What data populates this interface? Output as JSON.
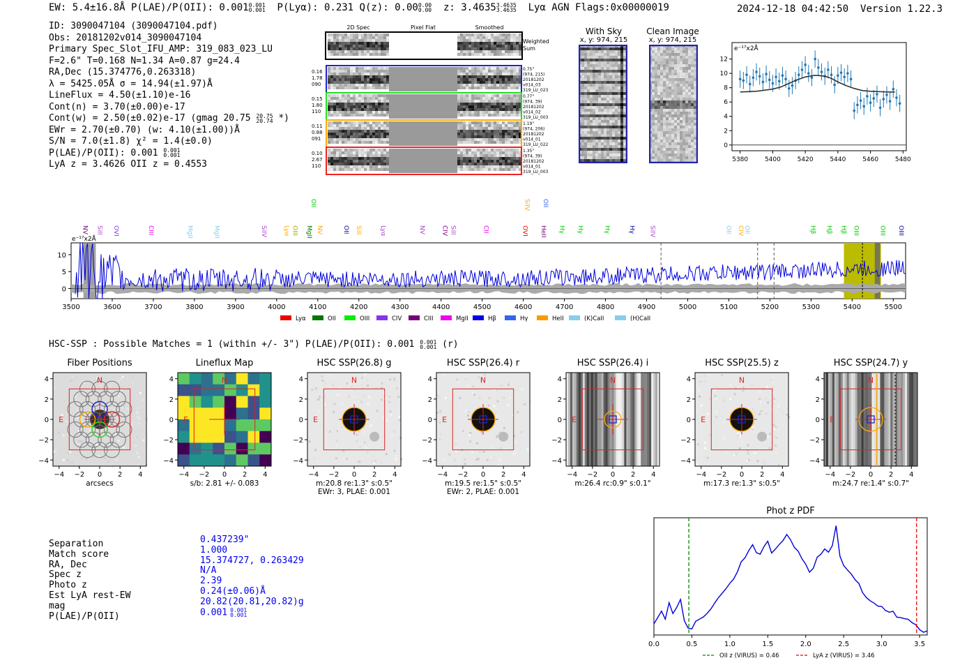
{
  "header": {
    "summary": "EW: 5.4±16.8Å  P(LAE)/P(OII): 0.001",
    "plae_sup": "0.001",
    "plae_sub": "0.001",
    "plya": "P(Lyα): 0.231  Q(z): 0.00",
    "qz_sup": "0.00",
    "qz_sub": "0.00",
    "z": "z: 3.4635",
    "z_sup": "3.4635",
    "z_sub": "3.4635",
    "tail": "Lyα  AGN  Flags:0x00000019",
    "datetime": "2024-12-18 04:42:50",
    "version": "Version 1.22.3"
  },
  "info": {
    "lines": [
      "ID: 3090047104 (3090047104.pdf)",
      "Obs: 20181202v014_3090047104",
      "Primary Spec_Slot_IFU_AMP: 319_083_023_LU",
      "F=2.6\"  T=0.168  N=1.34  A=0.87  g=24.4",
      "RA,Dec (15.374776,0.263318)",
      "λ = 5425.05Å  σ = 14.94(±1.97)Å",
      "LineFlux = 4.50(±1.10)e-16",
      "Cont(n) = 3.70(±0.00)e-17"
    ],
    "contw": "Cont(w) = 2.50(±0.02)e-17 (gmag 20.75",
    "contw_sup": "20.75",
    "contw_sub": "20.74",
    "contw_tail": "*)",
    "ewr": "EWr = 2.70(±0.70) (w: 4.10(±1.00))Å",
    "sn": "S/N = 7.0(±1.8)  χ² = 1.4(±0.0)",
    "plae": "P(LAE)/P(OII): 0.001",
    "plae_sup": "0.001",
    "plae_sub": "0.001",
    "lyaz": "LyA z = 3.4626  OII z = 0.4553"
  },
  "fibers": {
    "col_titles": [
      "2D Spec",
      "Pixel Flat",
      "Smoothed"
    ],
    "weighted_sum": "Weighted\nSum",
    "rows": [
      {
        "left": [
          "0.16",
          "1.78",
          "090"
        ],
        "right": [
          "0.75\"",
          "(974, 215)",
          "20181202",
          "v014_03",
          "319_LU_023"
        ],
        "color": "#2222cc"
      },
      {
        "left": [
          "0.15",
          "1.80",
          "110"
        ],
        "right": [
          "0.77\"",
          "(974, 39)",
          "20181202",
          "v014_02",
          "319_LU_003"
        ],
        "color": "#22dd22"
      },
      {
        "left": [
          "0.11",
          "0.88",
          "091"
        ],
        "right": [
          "1.19\"",
          "(974, 206)",
          "20181202",
          "v014_01",
          "319_LU_022"
        ],
        "color": "#ffaa00"
      },
      {
        "left": [
          "0.10",
          "2.67",
          "110"
        ],
        "right": [
          "1.35\"",
          "(974, 39)",
          "20181202",
          "v014_01",
          "319_LU_003"
        ],
        "color": "#ee2222"
      }
    ]
  },
  "ccd_panels": [
    {
      "title": "With Sky",
      "subtitle": "x, y: 974, 215"
    },
    {
      "title": "Clean Image",
      "subtitle": "x, y: 974, 215"
    }
  ],
  "hsc_header": "HSC-SSP : Possible Matches = 1 (within +/- 3\")  P(LAE)/P(OII): 0.001",
  "hsc_header_sup": "0.001",
  "hsc_header_sub": "0.001",
  "hsc_header_tail": "(r)",
  "cutouts": [
    {
      "title": "Fiber Positions",
      "caption": [
        "arcsecs"
      ]
    },
    {
      "title": "Lineflux Map",
      "caption": [
        "s/b: 2.81 +/- 0.083"
      ]
    },
    {
      "title": "HSC SSP(26.8) g",
      "caption": [
        "m:20.8  re:1.3\"  s:0.5\"",
        "EWr: 3, PLAE: 0.001"
      ]
    },
    {
      "title": "HSC SSP(26.4) r",
      "caption": [
        "m:19.5  re:1.5\"  s:0.5\"",
        "EWr: 2, PLAE: 0.001"
      ]
    },
    {
      "title": "HSC SSP(26.4) i",
      "caption": [
        "m:26.4  rc:0.9\"  s:0.1\""
      ]
    },
    {
      "title": "HSC SSP(25.5) z",
      "caption": [
        "m:17.3  re:1.3\"  s:0.5\""
      ]
    },
    {
      "title": "HSC SSP(24.7) y",
      "caption": [
        "m:24.7  re:1.4\"  s:0.7\""
      ]
    }
  ],
  "cutout_axis": {
    "ticks": [
      "-4",
      "-2",
      "0",
      "2",
      "4"
    ],
    "compass_n": "N",
    "compass_e": "E"
  },
  "match_stats": {
    "labels": [
      "Separation",
      "Match score",
      "RA, Dec",
      "Spec z",
      "Photo z",
      "Est LyA rest-EW",
      "mag",
      "P(LAE)/P(OII)"
    ],
    "values": [
      "0.437239\"",
      "1.000",
      "15.374727, 0.263429",
      "N/A",
      "2.39",
      "0.24(±0.06)Å",
      "20.82(20.81,20.82)g",
      "0.001"
    ],
    "plae_sup": "0.001",
    "plae_sub": "0.001"
  },
  "chart_data": [
    {
      "id": "zoom-line-fit",
      "type": "scatter",
      "title": "",
      "ylabel": "e⁻¹⁷x2Å",
      "xlim": [
        5375,
        5482
      ],
      "ylim": [
        -0.8,
        14.3
      ],
      "xticks": [
        5380,
        5400,
        5420,
        5440,
        5460,
        5480
      ],
      "yticks": [
        0,
        2,
        4,
        6,
        8,
        10,
        12
      ],
      "points_x": [
        5380,
        5382,
        5384,
        5386,
        5388,
        5390,
        5392,
        5394,
        5396,
        5398,
        5400,
        5402,
        5404,
        5406,
        5408,
        5410,
        5412,
        5414,
        5416,
        5418,
        5420,
        5422,
        5424,
        5426,
        5428,
        5430,
        5432,
        5434,
        5436,
        5438,
        5440,
        5442,
        5444,
        5446,
        5448,
        5450,
        5452,
        5454,
        5456,
        5458,
        5460,
        5462,
        5464,
        5466,
        5468,
        5470,
        5472,
        5474,
        5476,
        5478
      ],
      "points_y": [
        9.2,
        9.0,
        9.8,
        8.5,
        9.4,
        10.2,
        9.6,
        8.8,
        9.9,
        9.1,
        8.6,
        9.5,
        8.9,
        9.7,
        9.2,
        7.9,
        8.3,
        9.0,
        9.8,
        10.5,
        11.2,
        10.0,
        9.4,
        12.0,
        10.8,
        10.2,
        9.6,
        10.5,
        9.8,
        8.4,
        9.7,
        10.1,
        9.5,
        10.0,
        9.2,
        4.8,
        5.6,
        6.2,
        5.4,
        6.8,
        5.9,
        6.5,
        7.1,
        5.2,
        6.4,
        7.0,
        6.1,
        7.8,
        6.6,
        5.8
      ],
      "err": 1.2,
      "fit_x": [
        5380,
        5390,
        5400,
        5405,
        5410,
        5415,
        5420,
        5425,
        5428,
        5432,
        5436,
        5440,
        5445,
        5450,
        5455,
        5460,
        5470,
        5475
      ],
      "fit_y": [
        7.4,
        7.5,
        7.8,
        8.1,
        8.6,
        9.1,
        9.5,
        9.7,
        9.7,
        9.6,
        9.3,
        8.8,
        8.3,
        7.9,
        7.6,
        7.5,
        7.4,
        7.4
      ]
    },
    {
      "id": "full-spectrum",
      "type": "line",
      "title": "",
      "ylabel": "e⁻¹⁷x2Å",
      "xlim": [
        3500,
        5530
      ],
      "ylim": [
        -3,
        13.5
      ],
      "xticks": [
        3500,
        3600,
        3700,
        3800,
        3900,
        4000,
        4100,
        4200,
        4300,
        4400,
        4500,
        4600,
        4700,
        4800,
        4900,
        5000,
        5100,
        5200,
        5300,
        5400,
        5500
      ],
      "yticks": [
        0,
        5,
        10
      ],
      "highlight": [
        5380,
        5470
      ],
      "dashed_lines": [
        4935,
        5170,
        5210
      ],
      "legend": [
        {
          "name": "Lyα",
          "color": "#ee0000"
        },
        {
          "name": "OII",
          "color": "#007700"
        },
        {
          "name": "OIII",
          "color": "#00ee00"
        },
        {
          "name": "CIV",
          "color": "#8833ee"
        },
        {
          "name": "CIII",
          "color": "#770077"
        },
        {
          "name": "MgII",
          "color": "#ee00ee"
        },
        {
          "name": "Hβ",
          "color": "#0000ee"
        },
        {
          "name": "Hγ",
          "color": "#3366ee"
        },
        {
          "name": "HeII",
          "color": "#ff9900"
        },
        {
          "name": "(K)CaII",
          "color": "#88ccee"
        },
        {
          "name": "(H)CaII",
          "color": "#88ccee"
        }
      ],
      "line_labels": [
        {
          "x": 3530,
          "text": "NV",
          "color": "#770077",
          "row": 0
        },
        {
          "x": 3565,
          "text": "SiII",
          "color": "#aa44cc",
          "row": 0
        },
        {
          "x": 3605,
          "text": "OVI",
          "color": "#8833ee",
          "row": 0
        },
        {
          "x": 3690,
          "text": "CIII",
          "color": "#ee00ee",
          "row": 0
        },
        {
          "x": 3785,
          "text": "MgII",
          "color": "#88ccee",
          "row": 0
        },
        {
          "x": 3850,
          "text": "MgII",
          "color": "#88ccee",
          "row": 0
        },
        {
          "x": 3965,
          "text": "SiIV",
          "color": "#aa44cc",
          "row": 0
        },
        {
          "x": 4020,
          "text": "Lyα",
          "color": "#ffaa00",
          "row": 0
        },
        {
          "x": 4040,
          "text": "OIII",
          "color": "#aaaa00",
          "row": 0
        },
        {
          "x": 4075,
          "text": "MgII",
          "color": "#007700",
          "row": 0
        },
        {
          "x": 4085,
          "text": "OII",
          "color": "#00cc00",
          "row": 1
        },
        {
          "x": 4100,
          "text": "NV",
          "color": "#ffaa00",
          "row": 0
        },
        {
          "x": 4165,
          "text": "OII",
          "color": "#0000aa",
          "row": 0
        },
        {
          "x": 4195,
          "text": "SiII",
          "color": "#ffaa00",
          "row": 0
        },
        {
          "x": 4255,
          "text": "Lyα",
          "color": "#aa44cc",
          "row": 0
        },
        {
          "x": 4350,
          "text": "NV",
          "color": "#aa44cc",
          "row": 0
        },
        {
          "x": 4405,
          "text": "CIV",
          "color": "#770077",
          "row": 0
        },
        {
          "x": 4425,
          "text": "SiII",
          "color": "#aa44cc",
          "row": 0
        },
        {
          "x": 4505,
          "text": "CII",
          "color": "#ee00ee",
          "row": 0
        },
        {
          "x": 4600,
          "text": "OVI",
          "color": "#ee0000",
          "row": 0
        },
        {
          "x": 4605,
          "text": "SiIV",
          "color": "#ffaa00",
          "row": 1
        },
        {
          "x": 4645,
          "text": "HeII",
          "color": "#770077",
          "row": 0
        },
        {
          "x": 4650,
          "text": "OII",
          "color": "#3366ee",
          "row": 1
        },
        {
          "x": 4690,
          "text": "Hγ",
          "color": "#00cc00",
          "row": 0
        },
        {
          "x": 4735,
          "text": "Hγ",
          "color": "#00cc00",
          "row": 0
        },
        {
          "x": 4800,
          "text": "Hγ",
          "color": "#00cc00",
          "row": 0
        },
        {
          "x": 4860,
          "text": "Hγ",
          "color": "#0000aa",
          "row": 0
        },
        {
          "x": 4910,
          "text": "SiIV",
          "color": "#aa44cc",
          "row": 0
        },
        {
          "x": 5095,
          "text": "OII",
          "color": "#88ccee",
          "row": 0
        },
        {
          "x": 5125,
          "text": "CIV",
          "color": "#ffaa00",
          "row": 0
        },
        {
          "x": 5140,
          "text": "OII",
          "color": "#88ccee",
          "row": 0
        },
        {
          "x": 5300,
          "text": "Hβ",
          "color": "#00cc00",
          "row": 0
        },
        {
          "x": 5340,
          "text": "Hβ",
          "color": "#00cc00",
          "row": 0
        },
        {
          "x": 5375,
          "text": "Hβ",
          "color": "#00cc00",
          "row": 0
        },
        {
          "x": 5405,
          "text": "OIII",
          "color": "#00cc00",
          "row": 0
        },
        {
          "x": 5470,
          "text": "OIII",
          "color": "#00cc00",
          "row": 0
        },
        {
          "x": 5515,
          "text": "OIII",
          "color": "#0000aa",
          "row": 0
        }
      ]
    },
    {
      "id": "photo-z-pdf",
      "type": "line",
      "title": "Phot z PDF",
      "xlim": [
        0,
        3.6
      ],
      "ylim": [
        0,
        1.02
      ],
      "xticks": [
        "0.0",
        "0.5",
        "1.0",
        "1.5",
        "2.0",
        "2.5",
        "3.0",
        "3.5"
      ],
      "x": [
        0.0,
        0.05,
        0.1,
        0.15,
        0.2,
        0.25,
        0.3,
        0.35,
        0.4,
        0.45,
        0.5,
        0.55,
        0.6,
        0.65,
        0.7,
        0.75,
        0.8,
        0.85,
        0.9,
        0.95,
        1.0,
        1.05,
        1.1,
        1.15,
        1.2,
        1.25,
        1.3,
        1.35,
        1.4,
        1.45,
        1.5,
        1.55,
        1.6,
        1.65,
        1.7,
        1.75,
        1.8,
        1.85,
        1.9,
        1.95,
        2.0,
        2.05,
        2.1,
        2.15,
        2.2,
        2.25,
        2.3,
        2.35,
        2.4,
        2.45,
        2.5,
        2.55,
        2.6,
        2.65,
        2.7,
        2.75,
        2.8,
        2.85,
        2.9,
        2.95,
        3.0,
        3.05,
        3.1,
        3.15,
        3.2,
        3.25,
        3.3,
        3.35,
        3.4,
        3.45,
        3.5,
        3.55,
        3.6
      ],
      "y": [
        0.1,
        0.15,
        0.2,
        0.14,
        0.28,
        0.18,
        0.24,
        0.3,
        0.12,
        0.08,
        0.05,
        0.1,
        0.14,
        0.16,
        0.2,
        0.24,
        0.27,
        0.32,
        0.36,
        0.39,
        0.44,
        0.5,
        0.56,
        0.62,
        0.68,
        0.74,
        0.78,
        0.72,
        0.7,
        0.78,
        0.8,
        0.72,
        0.76,
        0.8,
        0.84,
        0.86,
        0.82,
        0.78,
        0.72,
        0.65,
        0.6,
        0.56,
        0.6,
        0.66,
        0.7,
        0.74,
        0.72,
        0.78,
        0.96,
        0.7,
        0.62,
        0.58,
        0.54,
        0.5,
        0.44,
        0.38,
        0.32,
        0.3,
        0.28,
        0.26,
        0.24,
        0.22,
        0.2,
        0.19,
        0.16,
        0.15,
        0.14,
        0.12,
        0.09,
        0.07,
        0.05,
        0.04,
        0.03
      ],
      "vlines": [
        {
          "x": 0.46,
          "color": "#008800",
          "label": "OII z (VIRUS) = 0.46"
        },
        {
          "x": 3.46,
          "color": "#ee0000",
          "label": "LyA z (VIRUS) = 3.46"
        }
      ]
    }
  ]
}
